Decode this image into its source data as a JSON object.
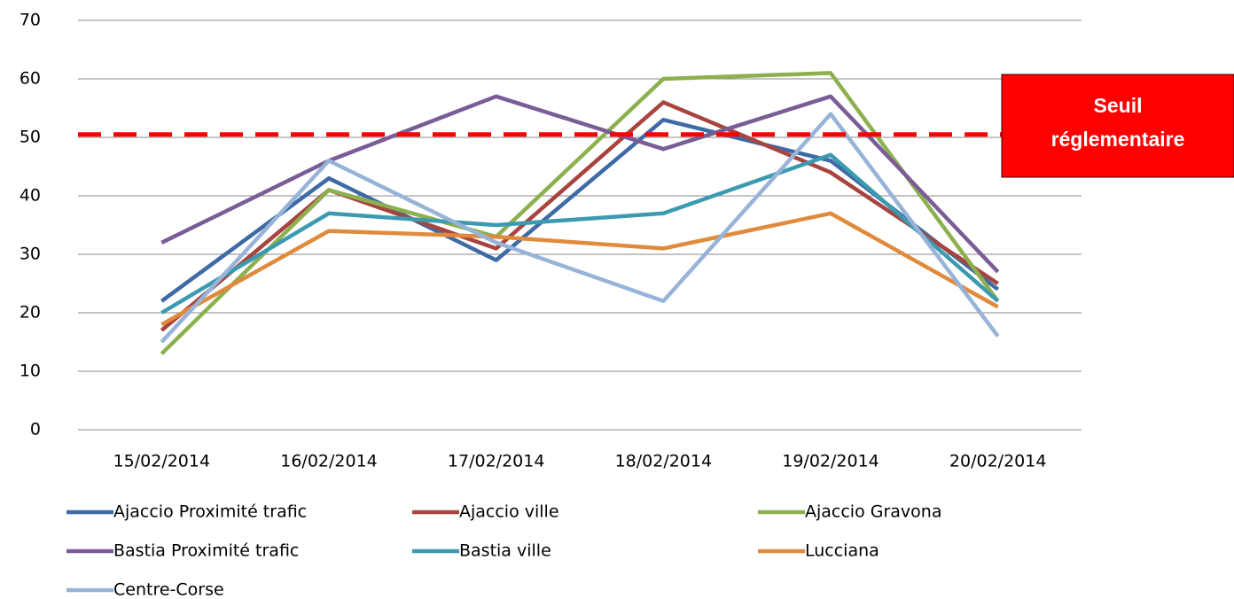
{
  "chart_data": {
    "type": "line",
    "categories": [
      "15/02/2014",
      "16/02/2014",
      "17/02/2014",
      "18/02/2014",
      "19/02/2014",
      "20/02/2014"
    ],
    "series": [
      {
        "name": "Ajaccio Proximité trafic",
        "color": "#3e6aa6",
        "values": [
          22,
          43,
          29,
          53,
          46,
          24
        ]
      },
      {
        "name": "Ajaccio ville",
        "color": "#a8443f",
        "values": [
          17,
          41,
          31,
          56,
          44,
          25
        ]
      },
      {
        "name": "Ajaccio Gravona",
        "color": "#8db04f",
        "values": [
          13,
          41,
          33,
          60,
          61,
          22
        ]
      },
      {
        "name": "Bastia Proximité trafic",
        "color": "#7a5c96",
        "values": [
          32,
          46,
          57,
          48,
          57,
          27
        ]
      },
      {
        "name": "Bastia ville",
        "color": "#3c9ab0",
        "values": [
          20,
          37,
          35,
          37,
          47,
          22
        ]
      },
      {
        "name": "Lucciana",
        "color": "#e08a3c",
        "values": [
          18,
          34,
          33,
          31,
          37,
          21
        ]
      },
      {
        "name": "Centre-Corse",
        "color": "#97b3d8",
        "values": [
          15,
          46,
          32,
          22,
          54,
          16
        ]
      }
    ],
    "ylim": [
      0,
      70
    ],
    "yticks": [
      0,
      10,
      20,
      30,
      40,
      50,
      60,
      70
    ],
    "grid": true,
    "threshold": {
      "value": 50.5,
      "color": "#ff0000",
      "label_lines": [
        "Seuil",
        "réglementaire"
      ]
    }
  }
}
